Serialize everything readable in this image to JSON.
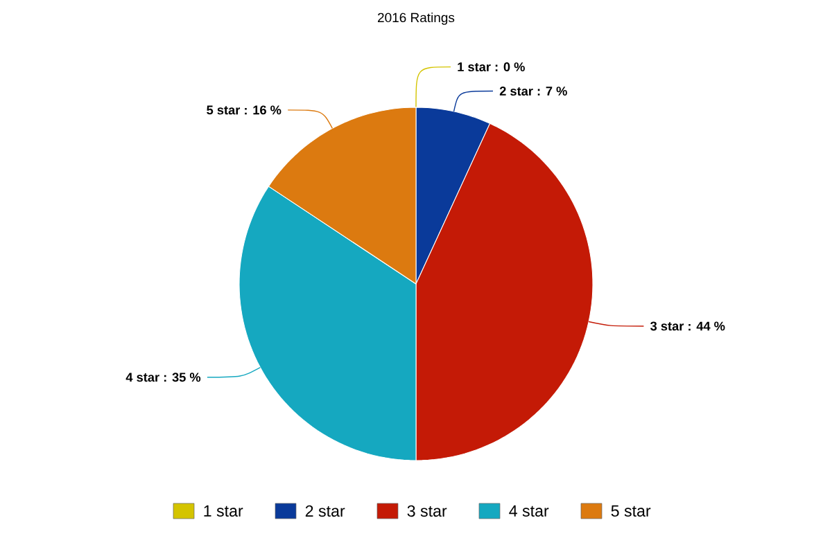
{
  "chart_data": {
    "type": "pie",
    "title": "2016 Ratings",
    "categories": [
      "1 star",
      "2 star",
      "3 star",
      "4 star",
      "5 star"
    ],
    "values": [
      0,
      7,
      44,
      35,
      16
    ],
    "colors": [
      "#d4c400",
      "#0a3a9a",
      "#c41a06",
      "#15a8c0",
      "#dc7a10"
    ],
    "value_labels": [
      "1 star : 0 %",
      "2 star : 7 %",
      "3 star : 44 %",
      "4 star : 35 %",
      "5 star : 16 %"
    ],
    "legend": "bottom"
  }
}
